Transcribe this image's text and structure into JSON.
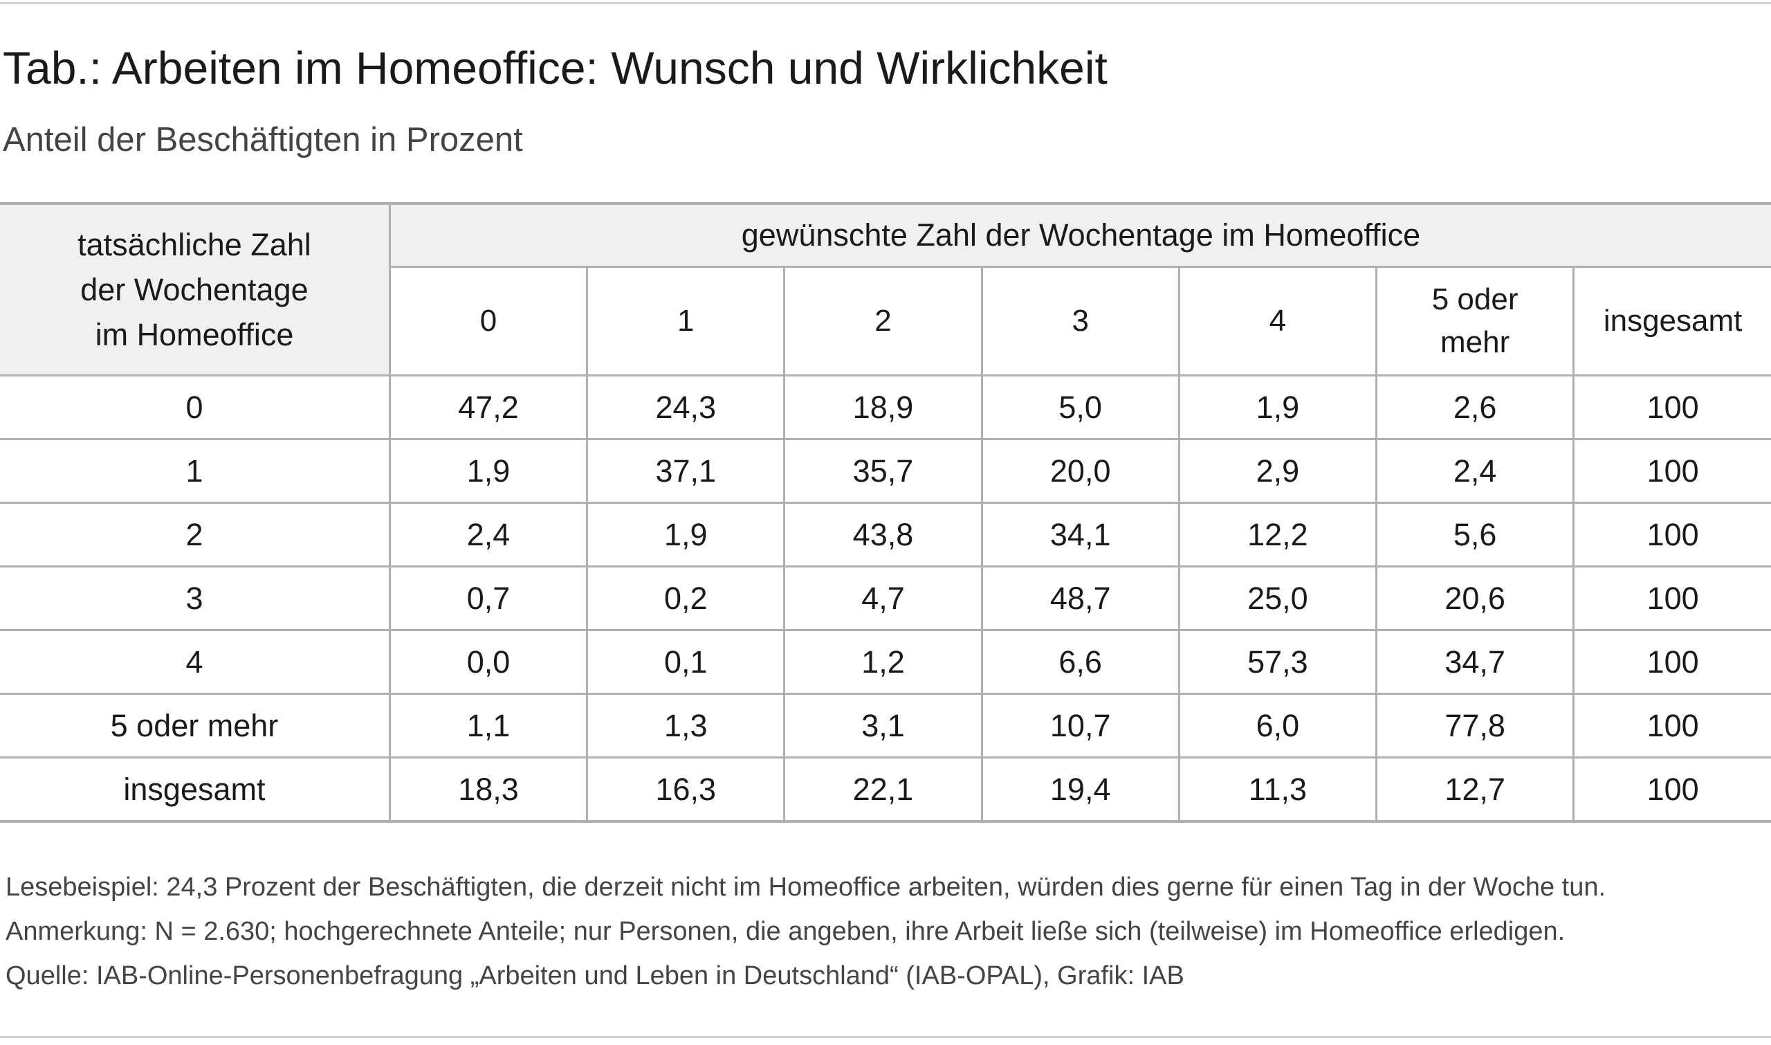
{
  "header": {
    "title": "Tab.: Arbeiten im Homeoffice: Wunsch und Wirklichkeit",
    "subtitle": "Anteil der Beschäftigten in Prozent"
  },
  "table": {
    "corner_header": [
      "tatsächliche Zahl",
      "der Wochentage",
      "im Homeoffice"
    ],
    "group_header": "gewünschte Zahl der Wochentage im Homeoffice",
    "columns": [
      "0",
      "1",
      "2",
      "3",
      "4",
      "5 oder mehr",
      "insgesamt"
    ],
    "rows": [
      {
        "label": "0",
        "values": [
          "47,2",
          "24,3",
          "18,9",
          "5,0",
          "1,9",
          "2,6",
          "100"
        ]
      },
      {
        "label": "1",
        "values": [
          "1,9",
          "37,1",
          "35,7",
          "20,0",
          "2,9",
          "2,4",
          "100"
        ]
      },
      {
        "label": "2",
        "values": [
          "2,4",
          "1,9",
          "43,8",
          "34,1",
          "12,2",
          "5,6",
          "100"
        ]
      },
      {
        "label": "3",
        "values": [
          "0,7",
          "0,2",
          "4,7",
          "48,7",
          "25,0",
          "20,6",
          "100"
        ]
      },
      {
        "label": "4",
        "values": [
          "0,0",
          "0,1",
          "1,2",
          "6,6",
          "57,3",
          "34,7",
          "100"
        ]
      },
      {
        "label": "5 oder mehr",
        "values": [
          "1,1",
          "1,3",
          "3,1",
          "10,7",
          "6,0",
          "77,8",
          "100"
        ]
      },
      {
        "label": "insgesamt",
        "values": [
          "18,3",
          "16,3",
          "22,1",
          "19,4",
          "11,3",
          "12,7",
          "100"
        ]
      }
    ]
  },
  "notes": [
    "Lesebeispiel: 24,3 Prozent der Beschäftigten, die derzeit nicht im Homeoffice arbeiten, würden dies gerne für einen Tag in der Woche tun.",
    "Anmerkung: N = 2.630; hochgerechnete Anteile; nur Personen, die angeben, ihre Arbeit ließe sich (teilweise) im Homeoffice erledigen.",
    "Quelle: IAB-Online-Personenbefragung „Arbeiten und Leben in Deutschland“ (IAB-OPAL), Grafik: IAB"
  ]
}
